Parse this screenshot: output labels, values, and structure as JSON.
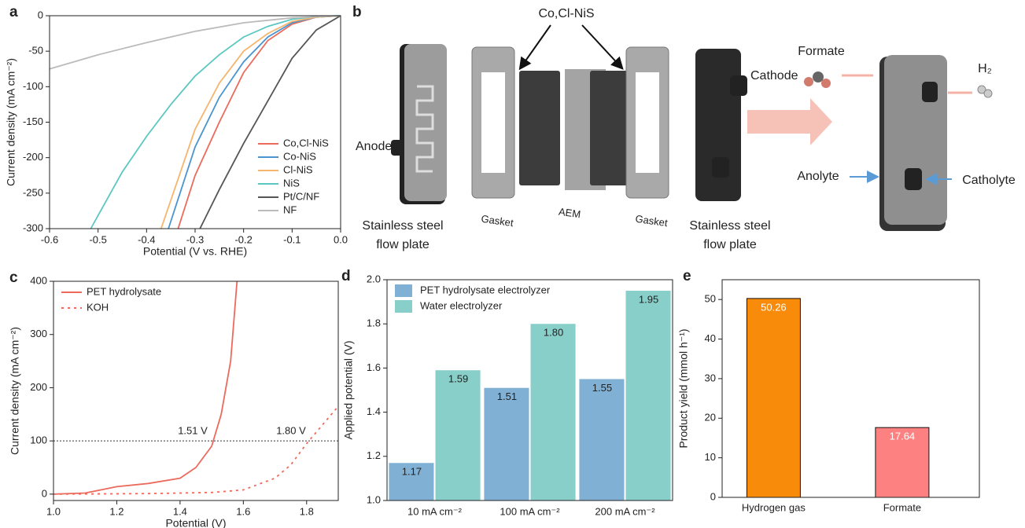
{
  "chart_data": [
    {
      "panel": "a",
      "type": "line",
      "xlabel": "Potential (V vs. RHE)",
      "ylabel": "Current density (mA cm⁻²)",
      "xlim": [
        -0.6,
        0
      ],
      "xticks": [
        -0.6,
        -0.5,
        -0.4,
        -0.3,
        -0.2,
        -0.1,
        {
          "value": 0,
          "label": "0.0"
        }
      ],
      "ylim": [
        -300,
        0
      ],
      "yticks": [
        0,
        -50,
        -100,
        -150,
        -200,
        -250,
        -300
      ],
      "legend": "lower right",
      "series": [
        {
          "name": "Co,Cl-NiS",
          "color": "#ec6a5c",
          "x": [
            0,
            -0.05,
            -0.1,
            -0.15,
            -0.2,
            -0.25,
            -0.3,
            -0.335
          ],
          "values": [
            0,
            -2,
            -12,
            -35,
            -80,
            -150,
            -225,
            -300
          ]
        },
        {
          "name": "Co-NiS",
          "color": "#4a95cf",
          "x": [
            0,
            -0.05,
            -0.1,
            -0.15,
            -0.2,
            -0.25,
            -0.3,
            -0.355
          ],
          "values": [
            0,
            -2,
            -10,
            -30,
            -65,
            -115,
            -185,
            -300
          ]
        },
        {
          "name": "Cl-NiS",
          "color": "#f5b56e",
          "x": [
            0,
            -0.05,
            -0.1,
            -0.15,
            -0.2,
            -0.25,
            -0.3,
            -0.37
          ],
          "values": [
            0,
            -2,
            -8,
            -25,
            -50,
            -95,
            -160,
            -300
          ]
        },
        {
          "name": "NiS",
          "color": "#5cc7c1",
          "x": [
            0,
            -0.05,
            -0.1,
            -0.15,
            -0.2,
            -0.25,
            -0.3,
            -0.35,
            -0.4,
            -0.45,
            -0.515
          ],
          "values": [
            0,
            -1,
            -5,
            -15,
            -30,
            -55,
            -85,
            -125,
            -170,
            -220,
            -300
          ]
        },
        {
          "name": "Pt/C/NF",
          "color": "#555555",
          "x": [
            0,
            -0.05,
            -0.1,
            -0.15,
            -0.2,
            -0.25,
            -0.29
          ],
          "values": [
            0,
            -20,
            -60,
            -120,
            -180,
            -245,
            -300
          ]
        },
        {
          "name": "NF",
          "color": "#bbbbbb",
          "x": [
            0,
            -0.1,
            -0.2,
            -0.3,
            -0.4,
            -0.5,
            -0.6
          ],
          "values": [
            0,
            -3,
            -10,
            -22,
            -38,
            -55,
            -75
          ]
        }
      ]
    },
    {
      "panel": "c",
      "type": "line",
      "xlabel": "Potential (V)",
      "ylabel": "Current density (mA cm⁻²)",
      "xlim": [
        1.0,
        1.9
      ],
      "xticks": [
        {
          "value": 1.0,
          "label": "1.0"
        },
        1.2,
        1.4,
        1.6,
        1.8
      ],
      "ylim": [
        -12,
        400
      ],
      "yticks": [
        0,
        100,
        200,
        300,
        400
      ],
      "legend": "upper left",
      "reference_line": 100,
      "annotations": [
        "1.51 V",
        "1.80 V"
      ],
      "series": [
        {
          "name": "PET hydrolysate",
          "color": "#ec6a5c",
          "dash": false,
          "x": [
            1.0,
            1.1,
            1.15,
            1.2,
            1.3,
            1.4,
            1.45,
            1.5,
            1.53,
            1.56,
            1.58
          ],
          "values": [
            0,
            2,
            8,
            14,
            20,
            30,
            50,
            90,
            150,
            250,
            400
          ]
        },
        {
          "name": "KOH",
          "color": "#ec6a5c",
          "dash": true,
          "x": [
            1.0,
            1.3,
            1.5,
            1.6,
            1.7,
            1.75,
            1.8,
            1.85,
            1.9
          ],
          "values": [
            0,
            1,
            3,
            8,
            30,
            55,
            95,
            130,
            165
          ]
        }
      ]
    },
    {
      "panel": "d",
      "type": "groupbar",
      "ylabel": "Applied potential (V)",
      "categories": [
        "10 mA cm⁻²",
        "100 mA cm⁻²",
        "200 mA cm⁻²"
      ],
      "ylim": [
        1.0,
        2.0
      ],
      "yticks": [
        {
          "value": 1.0,
          "label": "1.0"
        },
        1.2,
        1.4,
        1.6,
        1.8,
        {
          "value": 2.0,
          "label": "2.0"
        }
      ],
      "legend": "upper left",
      "series": [
        {
          "name": "PET hydrolysate electrolyzer",
          "color": "#80b1d5",
          "values": [
            1.17,
            1.51,
            1.55
          ]
        },
        {
          "name": "Water electrolyzer",
          "color": "#89cfc9",
          "values": [
            1.59,
            1.8,
            1.95
          ],
          "value_labels": [
            "1.59",
            "1.80",
            "1.95"
          ]
        }
      ]
    },
    {
      "panel": "e",
      "type": "bar",
      "ylabel": "Product yield (mmol h⁻¹)",
      "categories": [
        "Hydrogen gas",
        "Formate"
      ],
      "values": [
        50.26,
        17.64
      ],
      "colors": [
        "#f98b0b",
        "#fd8181"
      ],
      "ylim": [
        0,
        55
      ],
      "yticks": [
        0,
        10,
        20,
        30,
        40,
        50
      ]
    }
  ],
  "diagram": {
    "panel": "b",
    "catalyst": "Co,Cl-NiS",
    "anode": "Anode",
    "cathode": "Cathode",
    "plate_left": [
      "Stainless steel",
      "flow plate"
    ],
    "plate_right": [
      "Stainless steel",
      "flow plate"
    ],
    "gasket_left": "Gasket",
    "membrane": "AEM",
    "gasket_right": "Gasket",
    "product_left": "Formate",
    "product_right": "H₂",
    "inlet_left": "Anolyte",
    "inlet_right": "Catholyte"
  }
}
